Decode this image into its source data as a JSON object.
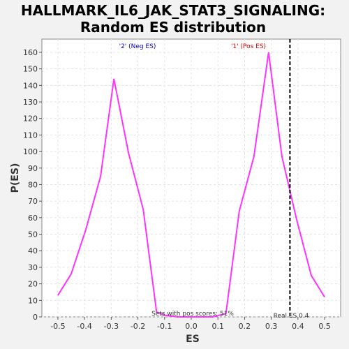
{
  "chart_data": {
    "type": "line",
    "title_line1": "HALLMARK_IL6_JAK_STAT3_SIGNALING:",
    "title_line2": "Random ES distribution",
    "xlabel": "ES",
    "ylabel": "P(ES)",
    "xlim": [
      -0.56,
      0.56
    ],
    "ylim": [
      0,
      168
    ],
    "xticks": [
      -0.5,
      -0.4,
      -0.3,
      -0.2,
      -0.1,
      0.0,
      0.1,
      0.2,
      0.3,
      0.4,
      0.5
    ],
    "xtick_labels": [
      "-0.5",
      "-0.4",
      "-0.3",
      "-0.2",
      "-0.1",
      "0.0",
      "0.1",
      "0.2",
      "0.3",
      "0.4",
      "0.5"
    ],
    "yticks": [
      0,
      10,
      20,
      30,
      40,
      50,
      60,
      70,
      80,
      90,
      100,
      110,
      120,
      130,
      140,
      150,
      160
    ],
    "ytick_labels": [
      "0",
      "10",
      "20",
      "30",
      "40",
      "50",
      "60",
      "70",
      "80",
      "90",
      "100",
      "110",
      "120",
      "130",
      "140",
      "150",
      "160"
    ],
    "grid": true,
    "line_color": "#ff33ff",
    "x": [
      -0.5,
      -0.45,
      -0.395,
      -0.34,
      -0.29,
      -0.235,
      -0.18,
      -0.13,
      -0.1,
      -0.05,
      0.0,
      0.08,
      0.13,
      0.18,
      0.235,
      0.29,
      0.34,
      0.395,
      0.45,
      0.5
    ],
    "y": [
      13,
      26,
      53,
      85,
      144,
      99,
      65,
      3,
      1,
      0,
      0,
      0,
      2,
      64,
      97,
      160,
      97,
      59,
      25,
      12
    ],
    "real_es": 0.4,
    "real_es_x": 0.37,
    "real_es_label": "Real ES 0.4",
    "pos_label": "'1' (Pos ES)",
    "neg_label": "'2' (Neg ES)",
    "pos_color": "#dd0000",
    "neg_color": "#0000dd",
    "sets_label": "Sets with pos scores: 51%"
  }
}
